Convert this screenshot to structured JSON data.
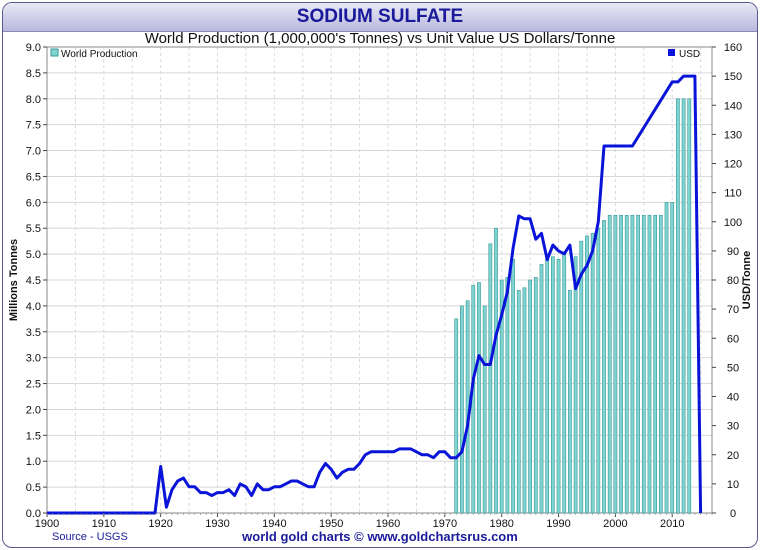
{
  "header": {
    "title": "SODIUM SULFATE",
    "subtitle": "World Production (1,000,000's Tonnes) vs Unit Value US Dollars/Tonne"
  },
  "footer": {
    "source": "Source - USGS",
    "credit": "world gold charts © www.goldchartsrus.com"
  },
  "colors": {
    "bar": "#7fd3d0",
    "bar_edge": "#3a9a98",
    "line": "#0a14d8",
    "grid": "#d8d8d8",
    "title": "#1a1a9a"
  },
  "chart_data": {
    "type": "bar+line",
    "title": "SODIUM SULFATE",
    "subtitle": "World Production (1,000,000's Tonnes) vs Unit Value US Dollars/Tonne",
    "xlabel": "",
    "ylabel_left": "Millions Tonnes",
    "ylabel_right": "USD/Tonne",
    "xlim": [
      1900,
      2017
    ],
    "ylim_left": [
      0,
      9.0
    ],
    "ylim_right": [
      0,
      160
    ],
    "x_ticks": [
      "1900",
      "1910",
      "1920",
      "1930",
      "1940",
      "1950",
      "1960",
      "1970",
      "1980",
      "1990",
      "2000",
      "2010"
    ],
    "y_left_ticks": [
      "0.0",
      "0.5",
      "1.0",
      "1.5",
      "2.0",
      "2.5",
      "3.0",
      "3.5",
      "4.0",
      "4.5",
      "5.0",
      "5.5",
      "6.0",
      "6.5",
      "7.0",
      "7.5",
      "8.0",
      "8.5",
      "9.0"
    ],
    "y_right_ticks": [
      "0",
      "10",
      "20",
      "30",
      "40",
      "50",
      "60",
      "70",
      "80",
      "90",
      "100",
      "110",
      "120",
      "130",
      "140",
      "150",
      "160"
    ],
    "grid": true,
    "legend": [
      {
        "name": "World Production",
        "position": "top-left"
      },
      {
        "name": "USD",
        "position": "top-right"
      }
    ],
    "series": [
      {
        "name": "World Production",
        "kind": "bar",
        "axis": "left",
        "x": [
          1972,
          1973,
          1974,
          1975,
          1976,
          1977,
          1978,
          1979,
          1980,
          1981,
          1982,
          1983,
          1984,
          1985,
          1986,
          1987,
          1988,
          1989,
          1990,
          1991,
          1992,
          1993,
          1994,
          1995,
          1996,
          1997,
          1998,
          1999,
          2000,
          2001,
          2002,
          2003,
          2004,
          2005,
          2006,
          2007,
          2008,
          2009,
          2010,
          2011,
          2012,
          2013
        ],
        "values": [
          3.75,
          4.0,
          4.1,
          4.4,
          4.45,
          4.0,
          5.2,
          5.5,
          4.5,
          4.55,
          4.9,
          4.3,
          4.35,
          4.5,
          4.55,
          4.8,
          5.0,
          4.95,
          4.9,
          5.0,
          4.3,
          4.95,
          5.25,
          5.35,
          5.4,
          5.5,
          5.65,
          5.75,
          5.75,
          5.75,
          5.75,
          5.75,
          5.75,
          5.75,
          5.75,
          5.75,
          5.75,
          6.0,
          6.0,
          8.0,
          8.0,
          8.0
        ]
      },
      {
        "name": "USD",
        "kind": "line",
        "axis": "right",
        "x": [
          1900,
          1918,
          1919,
          1920,
          1921,
          1922,
          1923,
          1924,
          1925,
          1926,
          1927,
          1928,
          1929,
          1930,
          1931,
          1932,
          1933,
          1934,
          1935,
          1936,
          1937,
          1938,
          1939,
          1940,
          1941,
          1942,
          1943,
          1944,
          1945,
          1946,
          1947,
          1948,
          1949,
          1950,
          1951,
          1952,
          1953,
          1954,
          1955,
          1956,
          1957,
          1958,
          1959,
          1960,
          1961,
          1962,
          1963,
          1964,
          1965,
          1966,
          1967,
          1968,
          1969,
          1970,
          1971,
          1972,
          1973,
          1974,
          1975,
          1976,
          1977,
          1978,
          1979,
          1980,
          1981,
          1982,
          1983,
          1984,
          1985,
          1986,
          1987,
          1988,
          1989,
          1990,
          1991,
          1992,
          1993,
          1994,
          1995,
          1996,
          1997,
          1998,
          2003,
          2010,
          2011,
          2012,
          2013,
          2014,
          2015
        ],
        "values": [
          0,
          0,
          0,
          16,
          2,
          8,
          11,
          12,
          9,
          9,
          7,
          7,
          6,
          7,
          7,
          8,
          6,
          10,
          9,
          6,
          10,
          8,
          8,
          9,
          9,
          10,
          11,
          11,
          10,
          9,
          9,
          14,
          17,
          15,
          12,
          14,
          15,
          15,
          17,
          20,
          21,
          21,
          21,
          21,
          21,
          22,
          22,
          22,
          21,
          20,
          20,
          19,
          21,
          21,
          19,
          19,
          21,
          30,
          46,
          54,
          51,
          51,
          61,
          68,
          76,
          91,
          102,
          101,
          101,
          94,
          96,
          87,
          92,
          90,
          89,
          92,
          77,
          82,
          85,
          90,
          100,
          126,
          126,
          148,
          148,
          150,
          150,
          150,
          0
        ]
      }
    ]
  }
}
